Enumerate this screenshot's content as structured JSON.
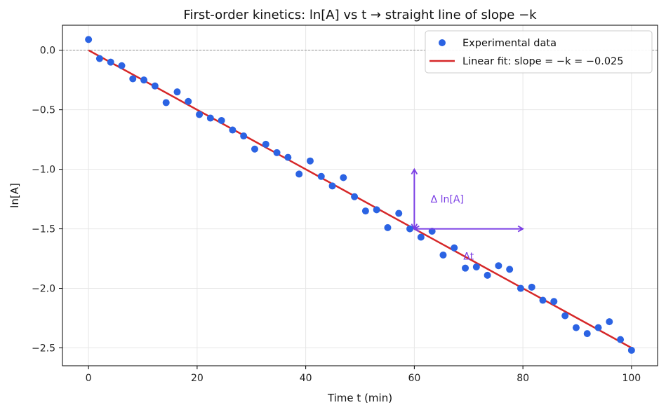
{
  "chart_data": {
    "type": "scatter",
    "title": "First-order kinetics: ln[A] vs t  →  straight line of slope −k",
    "xlabel": "Time t (min)",
    "ylabel": "ln[A]",
    "xlim": [
      -4.8,
      104.8
    ],
    "ylim": [
      -2.65,
      0.21
    ],
    "xticks": [
      0,
      20,
      40,
      60,
      80,
      100
    ],
    "yticks": [
      0.0,
      -0.5,
      -1.0,
      -1.5,
      -2.0,
      -2.5
    ],
    "xtick_labels": [
      "0",
      "20",
      "40",
      "60",
      "80",
      "100"
    ],
    "ytick_labels": [
      "0.0",
      "−0.5",
      "−1.0",
      "−1.5",
      "−2.0",
      "−2.5"
    ],
    "grid": true,
    "legend_position": "top-right",
    "series": [
      {
        "name": "Experimental data",
        "kind": "scatter",
        "color": "#2b63e3",
        "x": [
          0,
          2.04,
          4.08,
          6.12,
          8.16,
          10.2,
          12.24,
          14.29,
          16.33,
          18.37,
          20.41,
          22.45,
          24.49,
          26.53,
          28.57,
          30.61,
          32.65,
          34.69,
          36.73,
          38.78,
          40.82,
          42.86,
          44.9,
          46.94,
          48.98,
          51.02,
          53.06,
          55.1,
          57.14,
          59.18,
          61.22,
          63.27,
          65.31,
          67.35,
          69.39,
          71.43,
          73.47,
          75.51,
          77.55,
          79.59,
          81.63,
          83.67,
          85.71,
          87.76,
          89.8,
          91.84,
          93.88,
          95.92,
          97.96,
          100
        ],
        "y": [
          0.09,
          -0.07,
          -0.1,
          -0.13,
          -0.24,
          -0.25,
          -0.3,
          -0.44,
          -0.35,
          -0.43,
          -0.54,
          -0.57,
          -0.59,
          -0.67,
          -0.72,
          -0.83,
          -0.79,
          -0.86,
          -0.9,
          -1.04,
          -0.93,
          -1.06,
          -1.14,
          -1.07,
          -1.23,
          -1.35,
          -1.34,
          -1.49,
          -1.37,
          -1.5,
          -1.57,
          -1.52,
          -1.72,
          -1.66,
          -1.83,
          -1.82,
          -1.89,
          -1.81,
          -1.84,
          -2.0,
          -1.99,
          -2.1,
          -2.11,
          -2.23,
          -2.33,
          -2.38,
          -2.33,
          -2.28,
          -2.43,
          -2.52
        ]
      },
      {
        "name": "Linear fit: slope = −k = −0.025",
        "kind": "line",
        "color": "#d62728",
        "x": [
          0,
          100
        ],
        "y": [
          0.0,
          -2.5
        ]
      }
    ],
    "reference_line": {
      "y": 0.0,
      "color": "#888888",
      "style": "dashed"
    },
    "annotations": [
      {
        "name": "delta-ln-arrow",
        "from": [
          60,
          -1.5
        ],
        "to": [
          60,
          -1.0
        ],
        "label": "Δ ln[A]",
        "label_at": [
          63,
          -1.25
        ],
        "color": "#7b3fe4"
      },
      {
        "name": "delta-t-arrow",
        "from": [
          60,
          -1.5
        ],
        "to": [
          80,
          -1.5
        ],
        "label": "Δt",
        "label_at": [
          70,
          -1.73
        ],
        "color": "#7b3fe4"
      }
    ]
  }
}
